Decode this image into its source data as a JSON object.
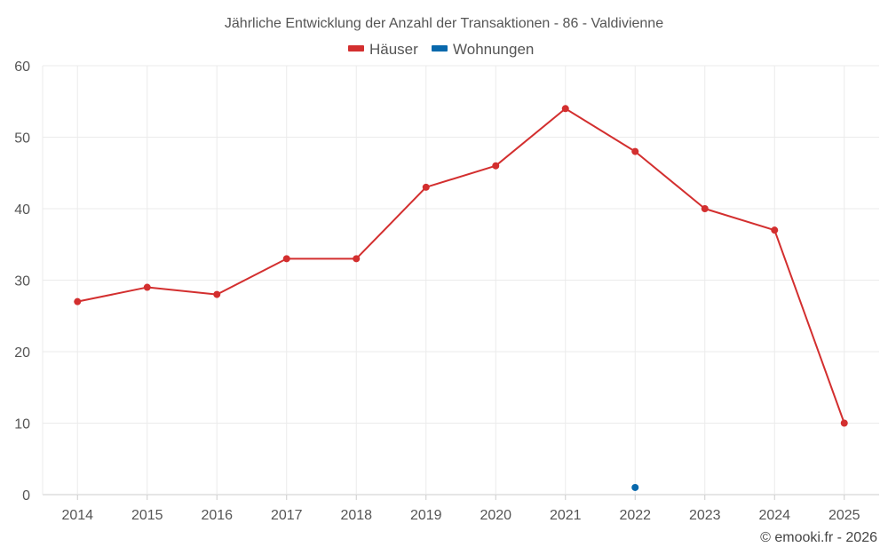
{
  "chart_data": {
    "type": "line",
    "title": "Jährliche Entwicklung der Anzahl der Transaktionen - 86 - Valdivienne",
    "categories": [
      "2014",
      "2015",
      "2016",
      "2017",
      "2018",
      "2019",
      "2020",
      "2021",
      "2022",
      "2023",
      "2024",
      "2025"
    ],
    "series": [
      {
        "name": "Häuser",
        "color": "#d32f2f",
        "values": [
          27,
          29,
          28,
          33,
          33,
          43,
          46,
          54,
          48,
          40,
          37,
          10
        ]
      },
      {
        "name": "Wohnungen",
        "color": "#0868ac",
        "values": [
          null,
          null,
          null,
          null,
          null,
          null,
          null,
          null,
          1,
          null,
          null,
          null
        ]
      }
    ],
    "ylim": [
      0,
      60
    ],
    "yticks": [
      0,
      10,
      20,
      30,
      40,
      50,
      60
    ],
    "xlabel": "",
    "ylabel": "",
    "grid": true,
    "legend_position": "top-center"
  },
  "credit": "© emooki.fr - 2026"
}
